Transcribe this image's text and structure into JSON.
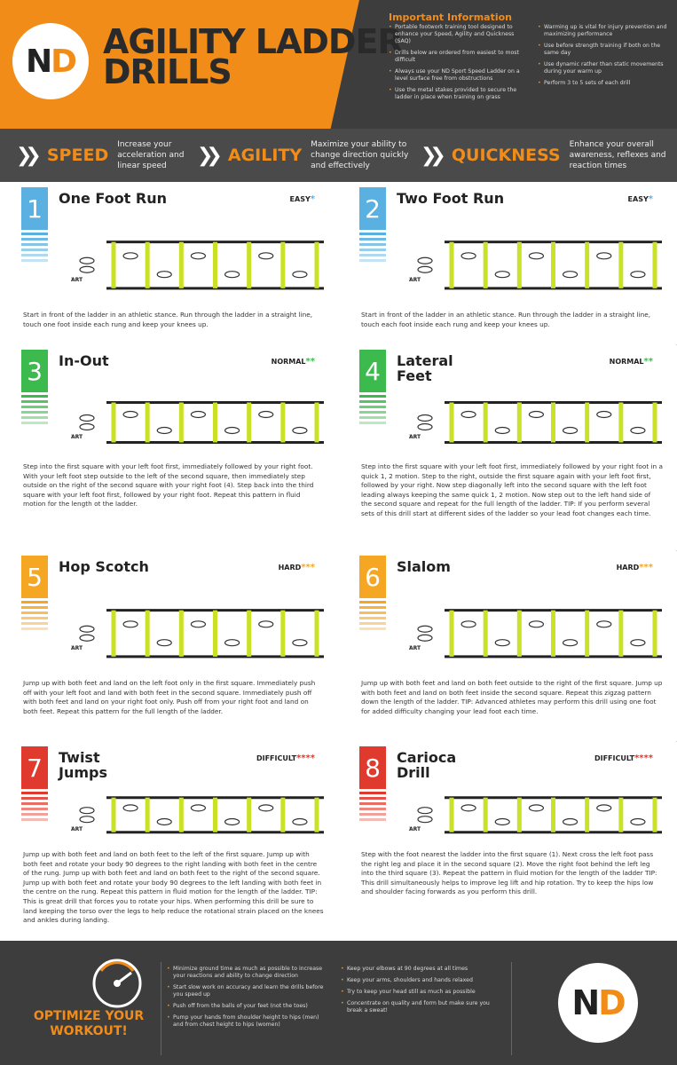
{
  "header": {
    "title_line1": "AGILITY LADDER",
    "title_line2": "DRILLS",
    "logo_n": "N",
    "logo_d": "D",
    "info_title": "Important Information",
    "info_left": [
      "Portable footwork training tool designed to enhance your Speed, Agility and Quickness (SAQ)",
      "Drills below are ordered from easiest to most difficult",
      "Always use your ND Sport Speed Ladder on a level surface free from obstructions",
      "Use the metal stakes provided to secure the ladder in place when training on grass"
    ],
    "info_right": [
      "Warming up is vital for injury prevention and maximizing performance",
      "Use before strength training if both on the same day",
      "Use dynamic rather than static movements during your warm up",
      "Perform 3 to 5 sets of each drill"
    ]
  },
  "banner": [
    {
      "word": "SPEED",
      "desc1": "Increase your",
      "desc2": "acceleration and",
      "desc3": "linear speed"
    },
    {
      "word": "AGILITY",
      "desc1": "Maximize your ability to",
      "desc2": "change direction quickly",
      "desc3": "and effectively"
    },
    {
      "word": "QUICKNESS",
      "desc1": "Enhance your overall",
      "desc2": "awareness, reflexes and",
      "desc3": "reaction times"
    }
  ],
  "drills": [
    {
      "num": "1",
      "name1": "One Foot Run",
      "name2": "",
      "diff": "EASY",
      "stars": "*",
      "color": "#5ab0e0",
      "desc": "Start in front of the ladder in an athletic stance. Run through the ladder in a straight line, touch one foot inside each rung and keep your knees up."
    },
    {
      "num": "2",
      "name1": "Two Foot Run",
      "name2": "",
      "diff": "EASY",
      "stars": "*",
      "color": "#5ab0e0",
      "desc": "Start in front of the ladder in an athletic stance. Run through the ladder in a straight line, touch each foot inside each rung and keep your knees up."
    },
    {
      "num": "3",
      "name1": "In-Out",
      "name2": "",
      "diff": "NORMAL",
      "stars": "**",
      "color": "#3dba4e",
      "desc": "Step into the first square with your left foot first, immediately followed by your right foot. With your left foot step outside to the left of the second square, then immediately step outside on the right of the second square with your right foot (4). Step back into the third square with your left foot first, followed by your right foot. Repeat this pattern in fluid motion for the length ot the ladder."
    },
    {
      "num": "4",
      "name1": "Lateral",
      "name2": "Feet",
      "diff": "NORMAL",
      "stars": "**",
      "color": "#3dba4e",
      "desc": "Step into the first square with your left foot first, immediately followed by your right foot in a quick 1, 2 motion. Step to the right, outside the first square again with your left foot first, followed by your right. Now step diagonally left into the second square with the left foot leading always keeping the same quick 1, 2 motion. Now step out to the left hand side of the second square and repeat for the full length of the ladder. TIP: If you perform several sets of this drill start at different sides of the ladder so your lead foot changes each time."
    },
    {
      "num": "5",
      "name1": "Hop Scotch",
      "name2": "",
      "diff": "HARD",
      "stars": "***",
      "color": "#f5a623",
      "desc": "Jump up with both feet and land on the left foot only in the first square. Immediately push off with your left foot and land with both feet in the second square. Immediately push off with both feet and land on your right foot only. Push off from your right foot and land on both feet. Repeat this pattern for the full length of the ladder."
    },
    {
      "num": "6",
      "name1": "Slalom",
      "name2": "",
      "diff": "HARD",
      "stars": "***",
      "color": "#f5a623",
      "desc": "Jump up with both feet and land on both feet outside to the right of the first square. Jump up with both feet and land on both feet inside the second square. Repeat this zigzag pattern down the length of the ladder. TIP: Advanced athletes may perform this drill using one foot for added difficulty changing your lead foot each time."
    },
    {
      "num": "7",
      "name1": "Twist",
      "name2": "Jumps",
      "diff": "DIFFICULT",
      "stars": "****",
      "color": "#e03a2e",
      "desc": "Jump up with both feet and land on both feet to the left of the first square. Jump up with both feet and rotate your body 90 degrees to the right landing with both feet in the centre of the rung. Jump up with both feet and land on both feet to the right of the second square. Jump up with both feet and rotate your body 90 degrees to the left landing with both feet in the centre on the rung. Repeat this pattern in fluid motion for the length of the ladder. TIP: This is great drill that forces you to rotate your hips. When performing this drill be sure to land keeping the torso over the legs to help reduce the rotational strain placed on the knees and ankles during landing."
    },
    {
      "num": "8",
      "name1": "Carioca",
      "name2": "Drill",
      "diff": "DIFFICULT",
      "stars": "****",
      "color": "#e03a2e",
      "desc": "Step with the foot nearest the ladder into the first square (1). Next cross the left foot pass the right leg and place it in the second square (2). Move the right foot behind the left leg into the third square (3). Repeat the pattern in fluid motion for the length of the ladder TIP: This drill simultaneously helps to improve leg lift and hip rotation. Try to keep the hips low and shoulder facing forwards as you perform this drill."
    }
  ],
  "start_label": "START",
  "footer": {
    "title1": "OPTIMIZE YOUR",
    "title2": "WORKOUT!",
    "tips_left": [
      "Minimize ground time as much as possible to increase your reactions and ability to change direction",
      "Start slow work on accuracy and learn the drills before you speed up",
      "Push off from the balls of your feet (not the toes)",
      "Pump your hands from shoulder height to hips (men) and from chest height to hips (women)"
    ],
    "tips_right": [
      "Keep your elbows at 90 degrees at all times",
      "Keep your arms, shoulders and hands relaxed",
      "Try to keep your head still as much as possible",
      "Concentrate on quality and form but make sure you break a sweat!"
    ]
  }
}
